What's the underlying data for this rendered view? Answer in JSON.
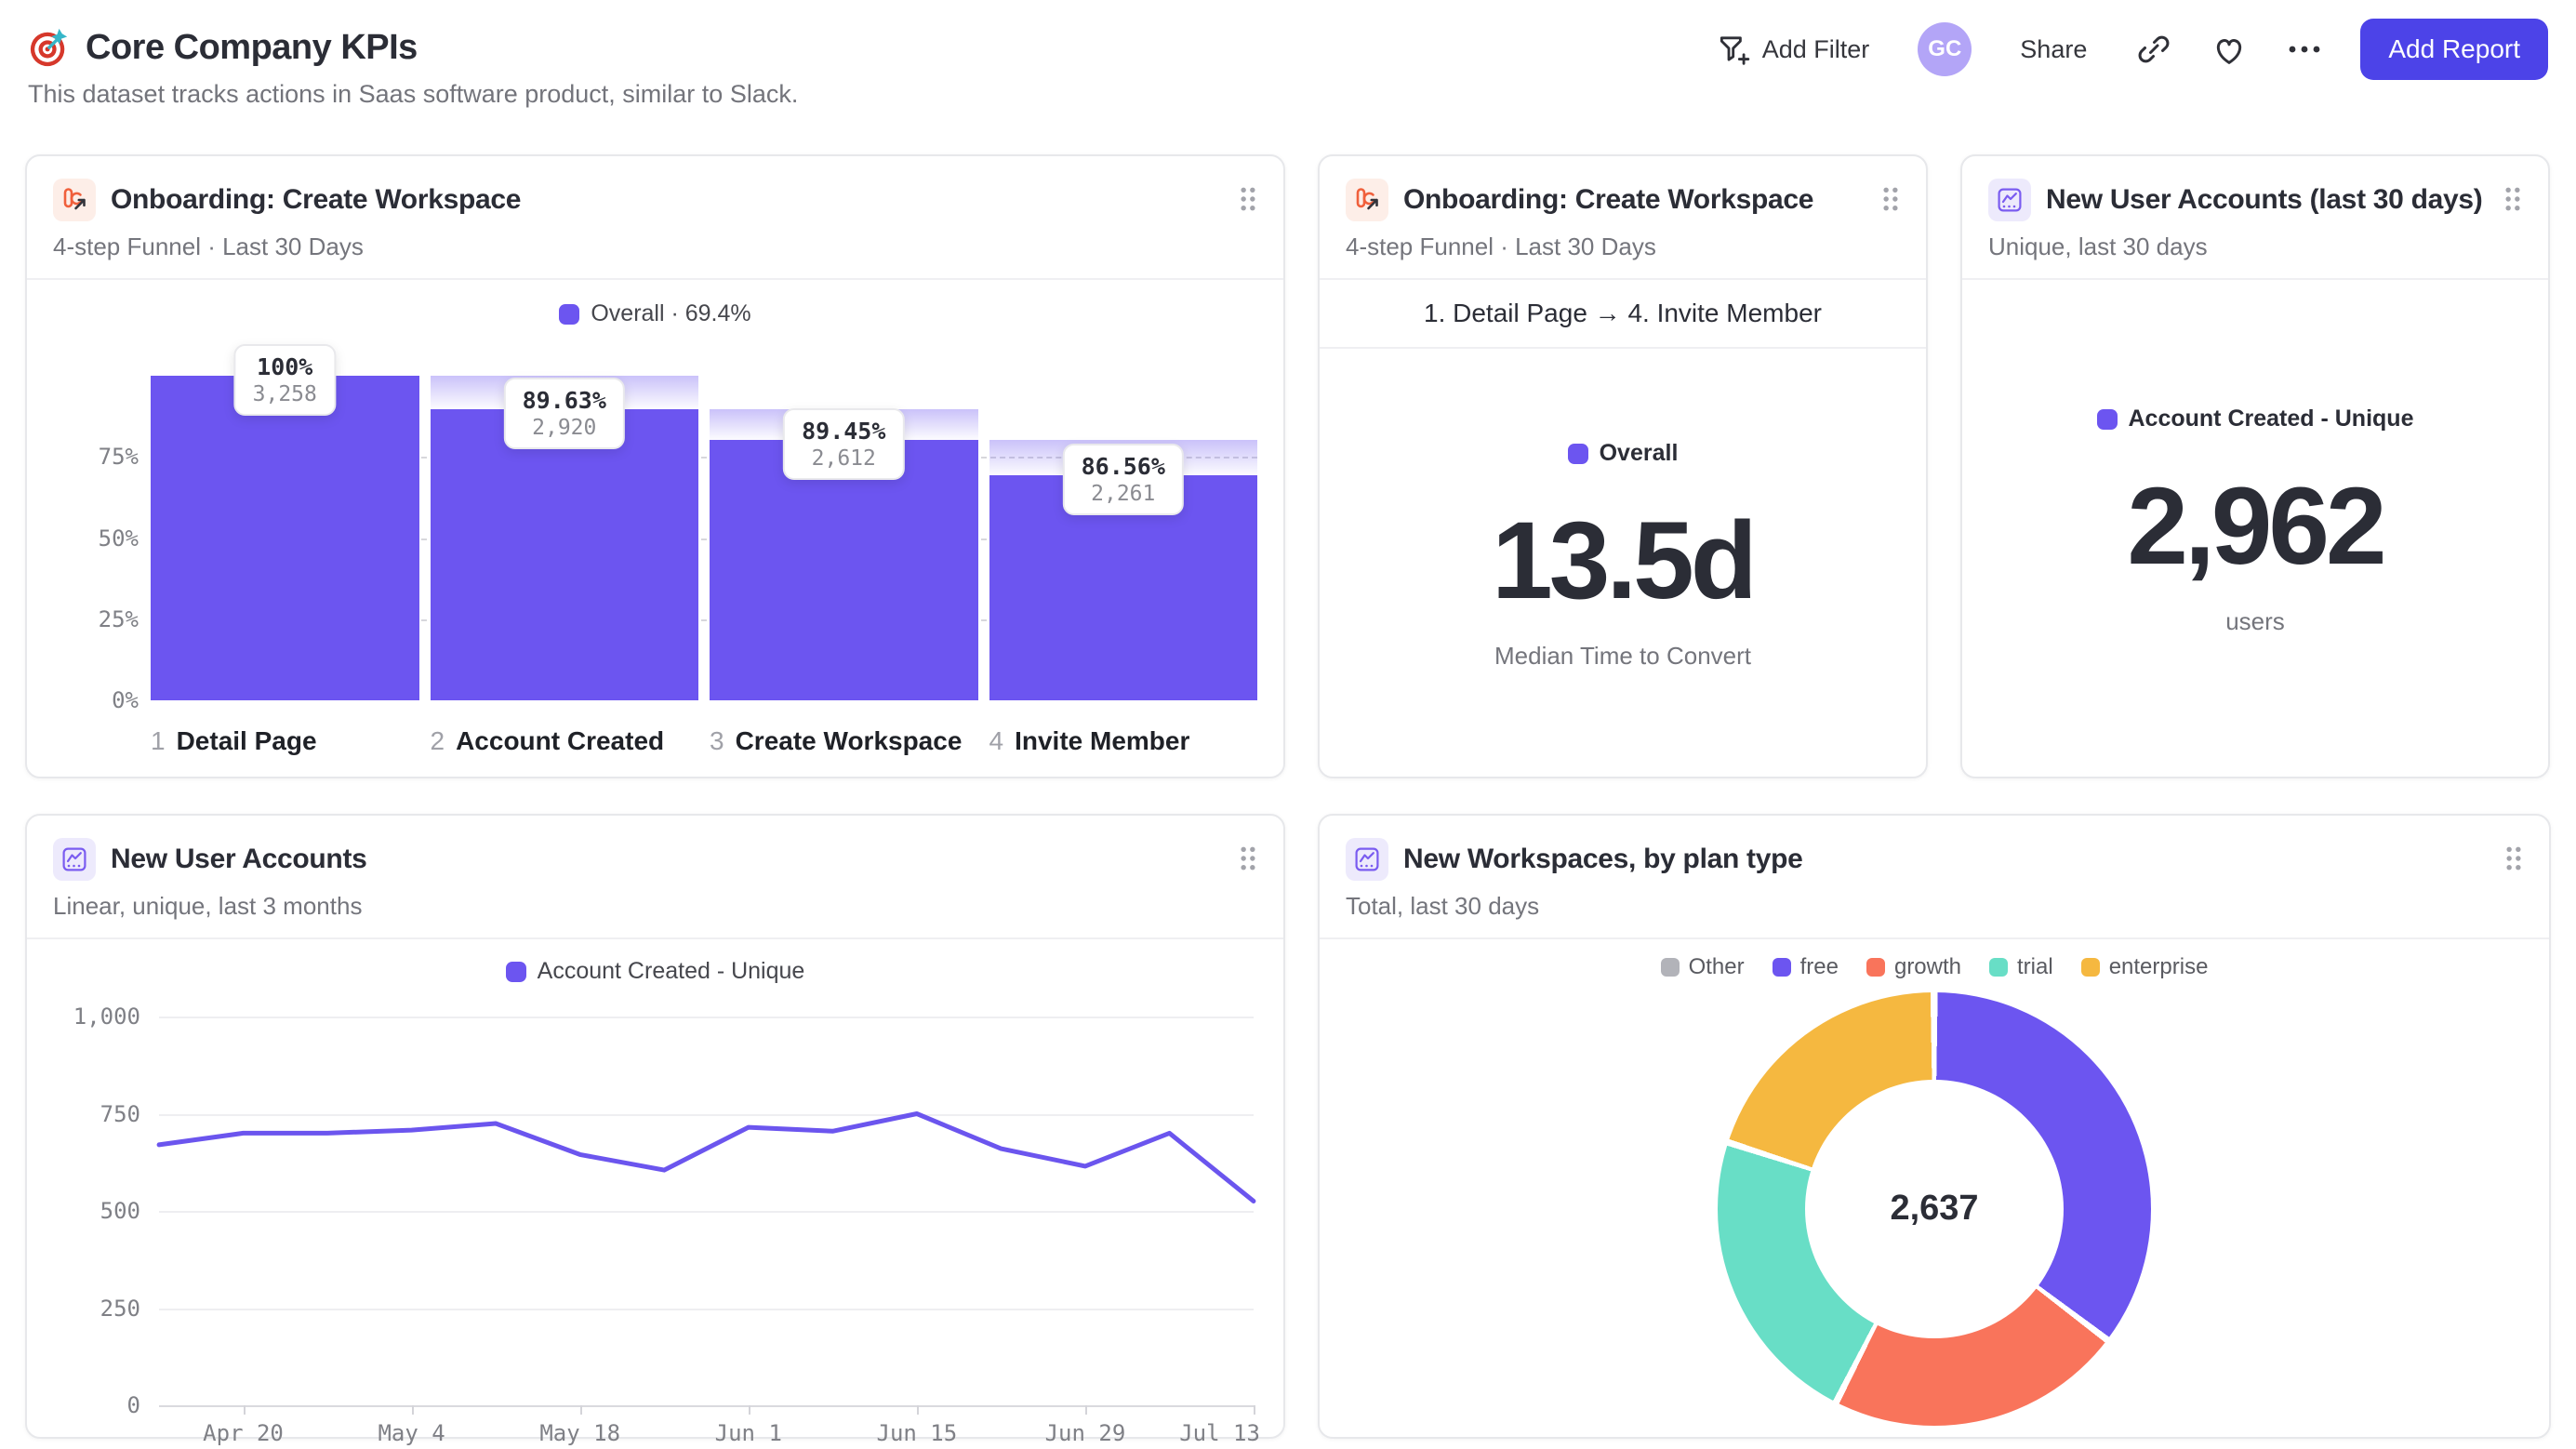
{
  "page": {
    "title": "Core Company KPIs",
    "subtitle": "This dataset tracks actions in Saas software product, similar to Slack.",
    "toolbar": {
      "add_filter": "Add Filter",
      "avatar_initials": "GC",
      "share": "Share",
      "add_report": "Add Report"
    }
  },
  "colors": {
    "accent_purple": "#6c55f0",
    "button_indigo": "#4c43e8",
    "growth_orange": "#f9745b",
    "trial_teal": "#68dec6",
    "enterprise_yellow": "#f5b840",
    "other_gray": "#b2b3b9"
  },
  "cards": {
    "funnel": {
      "title": "Onboarding: Create Workspace",
      "subtitle": "4-step Funnel · Last 30 Days"
    },
    "median_time": {
      "title": "Onboarding: Create Workspace",
      "subtitle": "4-step Funnel · Last 30 Days",
      "range_label": "1. Detail Page → 4. Invite Member",
      "legend_label": "Overall",
      "big_value": "13.5d",
      "caption": "Median Time to Convert"
    },
    "new_users_30d": {
      "title": "New User Accounts (last 30 days)",
      "subtitle": "Unique, last 30 days",
      "legend_label": "Account Created - Unique",
      "big_value": "2,962",
      "caption": "users"
    },
    "new_users_trend": {
      "title": "New User Accounts",
      "subtitle": "Linear, unique, last 3 months"
    },
    "workspaces_by_plan": {
      "title": "New Workspaces, by plan type",
      "subtitle": "Total, last 30 days"
    }
  },
  "chart_data": [
    {
      "id": "onboarding-funnel",
      "type": "bar",
      "variant": "funnel",
      "title": "Onboarding: Create Workspace",
      "legend": "Overall · 69.4%",
      "overall_conversion_pct": 69.4,
      "color": "#6c55f0",
      "ylim": [
        0,
        100
      ],
      "yticks": [
        {
          "label": "75%",
          "value": 75
        },
        {
          "label": "50%",
          "value": 50
        },
        {
          "label": "25%",
          "value": 25
        },
        {
          "label": "0%",
          "value": 0
        }
      ],
      "steps": [
        {
          "num": "1",
          "label": "Detail Page",
          "pct_label": "100%",
          "count_label": "3,258",
          "count": 3258,
          "pct_of_first": 100
        },
        {
          "num": "2",
          "label": "Account Created",
          "pct_label": "89.63%",
          "count_label": "2,920",
          "count": 2920,
          "pct_of_first": 89.63
        },
        {
          "num": "3",
          "label": "Create Workspace",
          "pct_label": "89.45%",
          "count_label": "2,612",
          "count": 2612,
          "pct_of_first": 80.17
        },
        {
          "num": "4",
          "label": "Invite Member",
          "pct_label": "86.56%",
          "count_label": "2,261",
          "count": 2261,
          "pct_of_first": 69.4
        }
      ]
    },
    {
      "id": "new-user-accounts-trend",
      "type": "line",
      "color": "#6b55ee",
      "series": [
        {
          "name": "Account Created - Unique",
          "values": [
            670,
            700,
            700,
            708,
            725,
            645,
            605,
            715,
            705,
            750,
            660,
            615,
            700,
            525
          ]
        }
      ],
      "x_tick_labels": [
        "Apr 20",
        "May 4",
        "May 18",
        "Jun 1",
        "Jun 15",
        "Jun 29",
        "Jul 13"
      ],
      "x_tick_indices": [
        1,
        3,
        5,
        7,
        9,
        11,
        13
      ],
      "ylim": [
        0,
        1000
      ],
      "yticks": [
        {
          "label": "1,000",
          "value": 1000
        },
        {
          "label": "750",
          "value": 750
        },
        {
          "label": "500",
          "value": 500
        },
        {
          "label": "250",
          "value": 250
        },
        {
          "label": "0",
          "value": 0
        }
      ],
      "grid": true,
      "legend_position": "top"
    },
    {
      "id": "workspaces-by-plan",
      "type": "pie",
      "variant": "donut",
      "center_label": "2,637",
      "total": 2637,
      "segments": [
        {
          "name": "free",
          "value": 931,
          "color": "#6c55f0"
        },
        {
          "name": "growth",
          "value": 585,
          "color": "#f9745b"
        },
        {
          "name": "trial",
          "value": 593,
          "color": "#68dec6"
        },
        {
          "name": "enterprise",
          "value": 527,
          "color": "#f5b840"
        },
        {
          "name": "Other",
          "value": 1,
          "color": "#b2b3b9"
        }
      ],
      "legend_items": [
        {
          "name": "Other",
          "color": "#b2b3b9"
        },
        {
          "name": "free",
          "color": "#6c55f0"
        },
        {
          "name": "growth",
          "color": "#f9745b"
        },
        {
          "name": "trial",
          "color": "#68dec6"
        },
        {
          "name": "enterprise",
          "color": "#f5b840"
        }
      ],
      "legend_position": "top"
    }
  ]
}
